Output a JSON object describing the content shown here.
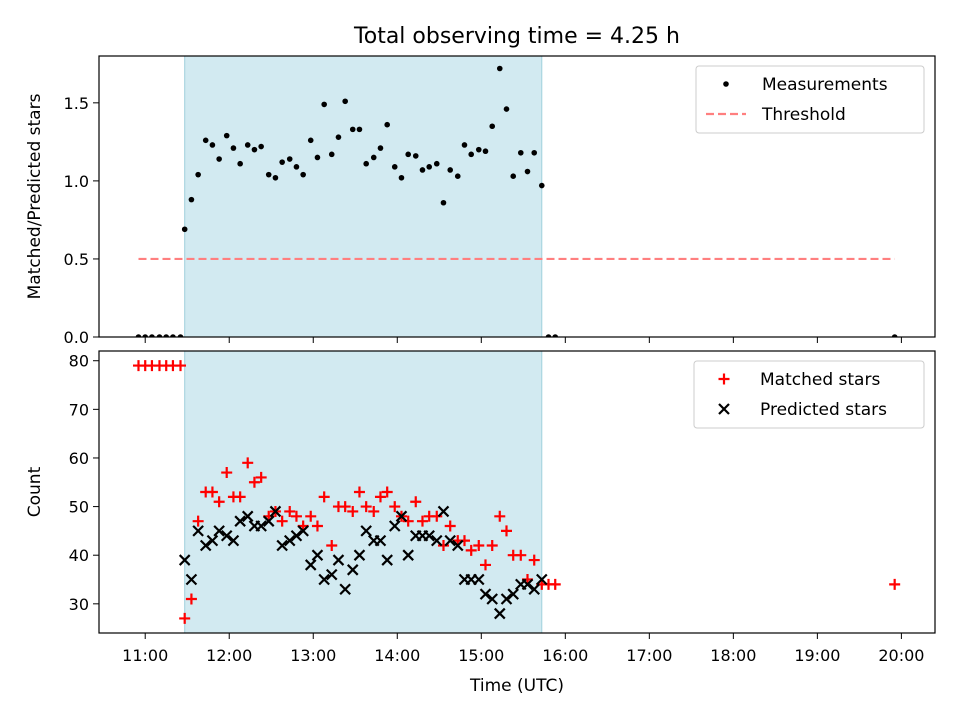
{
  "title": "Total observing time = 4.25 h",
  "chart_data": [
    {
      "type": "scatter",
      "panel": "top",
      "ylabel": "Matched/Predicted stars",
      "xlabel": "",
      "xlim": [
        10.45,
        20.4
      ],
      "ylim": [
        0,
        1.8
      ],
      "yticks": [
        0.0,
        0.5,
        1.0,
        1.5
      ],
      "ytick_labels": [
        "0.0",
        "0.5",
        "1.0",
        "1.5"
      ],
      "legend_position": "top-right",
      "observing_window": [
        11.47,
        15.72
      ],
      "window_color": "#add8e6",
      "series": [
        {
          "name": "Measurements",
          "color": "#000000",
          "marker": "dot",
          "x": [
            10.92,
            11.0,
            11.08,
            11.17,
            11.25,
            11.33,
            11.42,
            11.47,
            11.55,
            11.63,
            11.72,
            11.8,
            11.88,
            11.97,
            12.05,
            12.13,
            12.22,
            12.3,
            12.38,
            12.47,
            12.55,
            12.63,
            12.72,
            12.8,
            12.88,
            12.97,
            13.05,
            13.13,
            13.22,
            13.3,
            13.38,
            13.47,
            13.55,
            13.63,
            13.72,
            13.8,
            13.88,
            13.97,
            14.05,
            14.13,
            14.22,
            14.3,
            14.38,
            14.47,
            14.55,
            14.63,
            14.72,
            14.8,
            14.88,
            14.97,
            15.05,
            15.13,
            15.22,
            15.3,
            15.38,
            15.47,
            15.55,
            15.63,
            15.72,
            15.8,
            15.88,
            19.92
          ],
          "y": [
            0,
            0,
            0,
            0,
            0,
            0,
            0,
            0.69,
            0.88,
            1.04,
            1.26,
            1.23,
            1.14,
            1.29,
            1.21,
            1.11,
            1.23,
            1.2,
            1.22,
            1.04,
            1.02,
            1.12,
            1.14,
            1.09,
            1.04,
            1.26,
            1.15,
            1.49,
            1.17,
            1.28,
            1.51,
            1.33,
            1.33,
            1.11,
            1.15,
            1.21,
            1.36,
            1.09,
            1.02,
            1.17,
            1.16,
            1.07,
            1.09,
            1.11,
            0.86,
            1.07,
            1.03,
            1.23,
            1.17,
            1.2,
            1.19,
            1.35,
            1.72,
            1.46,
            1.03,
            1.18,
            1.06,
            1.18,
            0.97,
            0,
            0,
            0
          ]
        },
        {
          "name": "Threshold",
          "color": "#ff7f7f",
          "style": "dashed",
          "x": [
            10.92,
            19.92
          ],
          "y": [
            0.5,
            0.5
          ]
        }
      ]
    },
    {
      "type": "scatter",
      "panel": "bottom",
      "ylabel": "Count",
      "xlabel": "Time (UTC)",
      "xlim": [
        10.45,
        20.4
      ],
      "ylim": [
        24,
        82
      ],
      "yticks": [
        30,
        40,
        50,
        60,
        70,
        80
      ],
      "ytick_labels": [
        "30",
        "40",
        "50",
        "60",
        "70",
        "80"
      ],
      "xticks": [
        11,
        12,
        13,
        14,
        15,
        16,
        17,
        18,
        19,
        20
      ],
      "xtick_labels": [
        "11:00",
        "12:00",
        "13:00",
        "14:00",
        "15:00",
        "16:00",
        "17:00",
        "18:00",
        "19:00",
        "20:00"
      ],
      "legend_position": "top-right",
      "observing_window": [
        11.47,
        15.72
      ],
      "window_color": "#add8e6",
      "series": [
        {
          "name": "Matched stars",
          "color": "#ff0000",
          "marker": "plus",
          "x": [
            10.92,
            11.0,
            11.08,
            11.17,
            11.25,
            11.33,
            11.42,
            11.47,
            11.55,
            11.63,
            11.72,
            11.8,
            11.88,
            11.97,
            12.05,
            12.13,
            12.22,
            12.3,
            12.38,
            12.47,
            12.55,
            12.63,
            12.72,
            12.8,
            12.88,
            12.97,
            13.05,
            13.13,
            13.22,
            13.3,
            13.38,
            13.47,
            13.55,
            13.63,
            13.72,
            13.8,
            13.88,
            13.97,
            14.05,
            14.13,
            14.22,
            14.3,
            14.38,
            14.47,
            14.55,
            14.63,
            14.72,
            14.8,
            14.88,
            14.97,
            15.05,
            15.13,
            15.22,
            15.3,
            15.38,
            15.47,
            15.55,
            15.63,
            15.72,
            15.8,
            15.88,
            19.92
          ],
          "y": [
            79,
            79,
            79,
            79,
            79,
            79,
            79,
            27,
            31,
            47,
            53,
            53,
            51,
            57,
            52,
            52,
            59,
            55,
            56,
            48,
            49,
            47,
            49,
            48,
            46,
            48,
            46,
            52,
            42,
            50,
            50,
            49,
            53,
            50,
            49,
            52,
            53,
            50,
            48,
            47,
            51,
            47,
            48,
            48,
            42,
            46,
            43,
            43,
            41,
            42,
            38,
            42,
            48,
            45,
            40,
            40,
            35,
            39,
            34,
            34,
            34,
            34
          ]
        },
        {
          "name": "Predicted stars",
          "color": "#000000",
          "marker": "x",
          "x": [
            11.47,
            11.55,
            11.63,
            11.72,
            11.8,
            11.88,
            11.97,
            12.05,
            12.13,
            12.22,
            12.3,
            12.38,
            12.47,
            12.55,
            12.63,
            12.72,
            12.8,
            12.88,
            12.97,
            13.05,
            13.13,
            13.22,
            13.3,
            13.38,
            13.47,
            13.55,
            13.63,
            13.72,
            13.8,
            13.88,
            13.97,
            14.05,
            14.13,
            14.22,
            14.3,
            14.38,
            14.47,
            14.55,
            14.63,
            14.72,
            14.8,
            14.88,
            14.97,
            15.05,
            15.13,
            15.22,
            15.3,
            15.38,
            15.47,
            15.55,
            15.63,
            15.72
          ],
          "y": [
            39,
            35,
            45,
            42,
            43,
            45,
            44,
            43,
            47,
            48,
            46,
            46,
            47,
            49,
            42,
            43,
            44,
            45,
            38,
            40,
            35,
            36,
            39,
            33,
            37,
            40,
            45,
            43,
            43,
            39,
            46,
            48,
            40,
            44,
            44,
            44,
            43,
            49,
            43,
            42,
            35,
            35,
            35,
            32,
            31,
            28,
            31,
            32,
            34,
            34,
            33,
            35
          ]
        }
      ]
    }
  ]
}
